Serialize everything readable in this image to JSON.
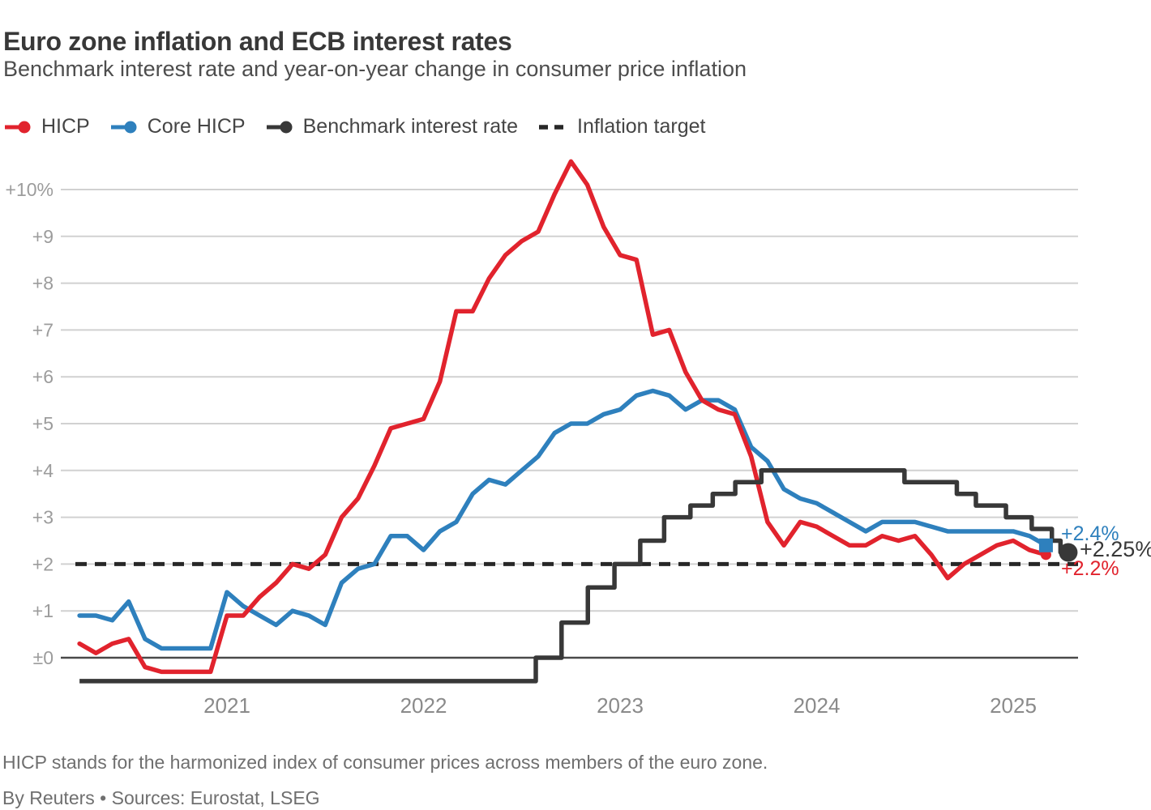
{
  "header": {
    "title": "Euro zone inflation and ECB interest rates",
    "subtitle": "Benchmark interest rate and year-on-year change in consumer price inflation"
  },
  "legend": [
    {
      "label": "HICP",
      "color": "#e1232d",
      "marker": "line-dot"
    },
    {
      "label": "Core HICP",
      "color": "#2e80bd",
      "marker": "line-dot"
    },
    {
      "label": "Benchmark interest rate",
      "color": "#383838",
      "marker": "line-dot"
    },
    {
      "label": "Inflation target",
      "color": "#272727",
      "marker": "dashes"
    }
  ],
  "end_labels": {
    "core_hicp": "+2.4%",
    "benchmark": "+2.25%",
    "hicp": "+2.2%"
  },
  "footnote": "HICP stands for the harmonized index of consumer prices across members of the euro zone.",
  "byline": "By Reuters • Sources: Eurostat, LSEG",
  "chart_data": {
    "type": "line",
    "title": "Euro zone inflation and ECB interest rates",
    "subtitle": "Benchmark interest rate and year-on-year change in consumer price inflation",
    "grid": "horizontal-only",
    "legend_position": "top-left",
    "y_axis": {
      "unit": "percent",
      "ticks": [
        "+10%",
        "+9",
        "+8",
        "+7",
        "+6",
        "+5",
        "+4",
        "+3",
        "+2",
        "+1",
        "±0"
      ],
      "tick_values": [
        10,
        9,
        8,
        7,
        6,
        5,
        4,
        3,
        2,
        1,
        0
      ],
      "range": [
        -0.6,
        10.7
      ]
    },
    "x_axis": {
      "ticks": [
        "2021",
        "2022",
        "2023",
        "2024",
        "2025"
      ],
      "tick_values": [
        2021,
        2022,
        2023,
        2024,
        2025
      ],
      "range_months": [
        "2020-04",
        "2025-05"
      ]
    },
    "inflation_target": 2,
    "series": [
      {
        "name": "HICP",
        "color": "#e1232d",
        "start_month": "2020-04",
        "frequency": "monthly",
        "end_value_label": "+2.2%",
        "end_marker": "dot",
        "values": [
          0.3,
          0.1,
          0.3,
          0.4,
          -0.2,
          -0.3,
          -0.3,
          -0.3,
          -0.3,
          0.9,
          0.9,
          1.3,
          1.6,
          2.0,
          1.9,
          2.2,
          3.0,
          3.4,
          4.1,
          4.9,
          5.0,
          5.1,
          5.9,
          7.4,
          7.4,
          8.1,
          8.6,
          8.9,
          9.1,
          9.9,
          10.6,
          10.1,
          9.2,
          8.6,
          8.5,
          6.9,
          7.0,
          6.1,
          5.5,
          5.3,
          5.2,
          4.3,
          2.9,
          2.4,
          2.9,
          2.8,
          2.6,
          2.4,
          2.4,
          2.6,
          2.5,
          2.6,
          2.2,
          1.7,
          2.0,
          2.2,
          2.4,
          2.5,
          2.3,
          2.2
        ]
      },
      {
        "name": "Core HICP",
        "color": "#2e80bd",
        "start_month": "2020-04",
        "frequency": "monthly",
        "end_value_label": "+2.4%",
        "end_marker": "square",
        "values": [
          0.9,
          0.9,
          0.8,
          1.2,
          0.4,
          0.2,
          0.2,
          0.2,
          0.2,
          1.4,
          1.1,
          0.9,
          0.7,
          1.0,
          0.9,
          0.7,
          1.6,
          1.9,
          2.0,
          2.6,
          2.6,
          2.3,
          2.7,
          2.9,
          3.5,
          3.8,
          3.7,
          4.0,
          4.3,
          4.8,
          5.0,
          5.0,
          5.2,
          5.3,
          5.6,
          5.7,
          5.6,
          5.3,
          5.5,
          5.5,
          5.3,
          4.5,
          4.2,
          3.6,
          3.4,
          3.3,
          3.1,
          2.9,
          2.7,
          2.9,
          2.9,
          2.9,
          2.8,
          2.7,
          2.7,
          2.7,
          2.7,
          2.7,
          2.6,
          2.4
        ]
      }
    ],
    "benchmark": {
      "name": "Benchmark interest rate",
      "color": "#383838",
      "end_value_label": "+2.25%",
      "end_marker": "big-dot",
      "end_date": "2025-04-12",
      "steps": [
        [
          "2020-04-01",
          -0.5
        ],
        [
          "2022-07-27",
          0.0
        ],
        [
          "2022-09-14",
          0.75
        ],
        [
          "2022-11-02",
          1.5
        ],
        [
          "2022-12-21",
          2.0
        ],
        [
          "2023-02-08",
          2.5
        ],
        [
          "2023-03-22",
          3.0
        ],
        [
          "2023-05-10",
          3.25
        ],
        [
          "2023-06-21",
          3.5
        ],
        [
          "2023-08-02",
          3.75
        ],
        [
          "2023-09-20",
          4.0
        ],
        [
          "2024-06-12",
          3.75
        ],
        [
          "2024-09-18",
          3.5
        ],
        [
          "2024-10-23",
          3.25
        ],
        [
          "2024-12-18",
          3.0
        ],
        [
          "2025-02-05",
          2.75
        ],
        [
          "2025-03-12",
          2.5
        ],
        [
          "2025-03-28",
          2.25
        ]
      ]
    },
    "style": {
      "grid_color": "#d1d1d1",
      "zero_line_color": "#4a4a4a",
      "tick_label_color": "#9c9c9c",
      "year_label_color": "#8a8a8a"
    }
  }
}
